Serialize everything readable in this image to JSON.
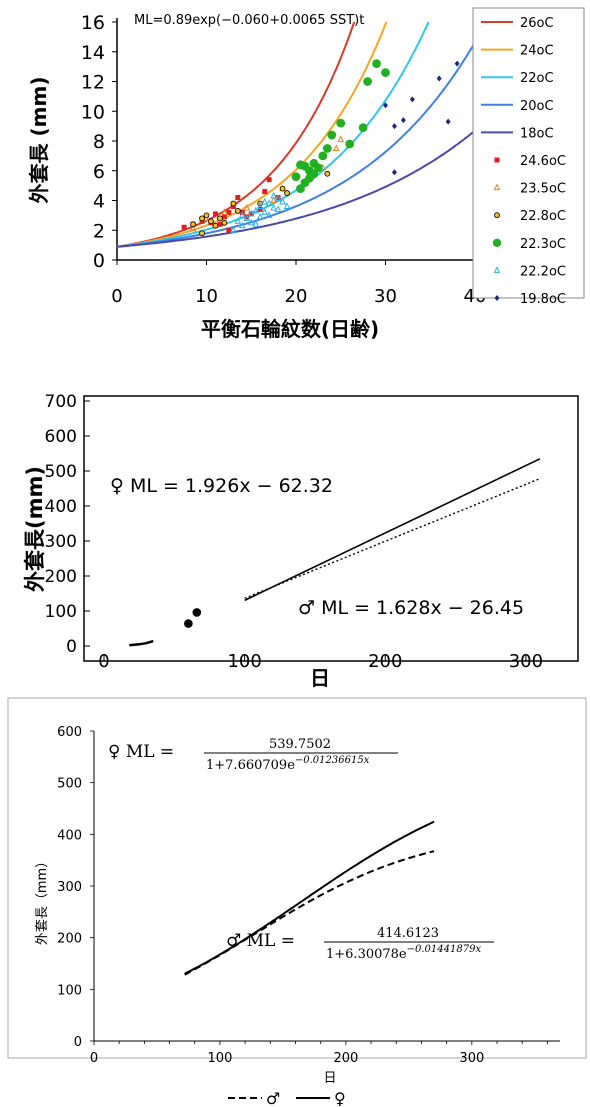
{
  "chart_data": [
    {
      "type": "scatter",
      "formula": "ML=0.89exp(−0.060+0.0065 SST)t",
      "xlabel": "平衡石輪紋数(日齢)",
      "ylabel": "外套長 (mm)",
      "xlim": [
        0,
        40
      ],
      "ylim": [
        0,
        16
      ],
      "xticks": [
        "0",
        "10",
        "20",
        "30",
        "40"
      ],
      "yticks": [
        "0",
        "2",
        "4",
        "6",
        "8",
        "10",
        "12",
        "14",
        "16"
      ],
      "grid": false,
      "legend_position": "right",
      "model": {
        "a": 0.89,
        "b": -0.06,
        "c": 0.0065
      },
      "curves": [
        {
          "name": "26oC",
          "sst": 26,
          "color": "#d63b2a"
        },
        {
          "name": "24oC",
          "sst": 24,
          "color": "#f5a623"
        },
        {
          "name": "22oC",
          "sst": 22,
          "color": "#2ec8e8"
        },
        {
          "name": "20oC",
          "sst": 20,
          "color": "#3f80e0"
        },
        {
          "name": "18oC",
          "sst": 18,
          "color": "#4a4aa8"
        }
      ],
      "series": [
        {
          "name": "24.6oC",
          "marker": "square",
          "color": "#e02020",
          "points": [
            [
              7.5,
              2.2
            ],
            [
              8.5,
              2.4
            ],
            [
              9.5,
              2.6
            ],
            [
              10.5,
              2.5
            ],
            [
              11,
              3.1
            ],
            [
              11.5,
              2.4
            ],
            [
              12,
              2.9
            ],
            [
              12.5,
              3.2
            ],
            [
              13,
              3.6
            ],
            [
              13.5,
              4.2
            ],
            [
              14,
              3.2
            ],
            [
              15,
              3.1
            ],
            [
              16,
              3.4
            ],
            [
              16.5,
              4.6
            ],
            [
              17,
              5.4
            ],
            [
              18,
              4.2
            ],
            [
              12.5,
              2.0
            ],
            [
              14.5,
              2.9
            ]
          ]
        },
        {
          "name": "23.5oC",
          "marker": "triangle-open",
          "color": "#f08020",
          "points": [
            [
              8.5,
              2.1
            ],
            [
              10,
              2.8
            ],
            [
              12,
              3.2
            ],
            [
              14.5,
              3.5
            ],
            [
              17.5,
              4.0
            ],
            [
              18.5,
              4.8
            ],
            [
              23,
              6.2
            ],
            [
              24.5,
              7.5
            ],
            [
              25,
              8.1
            ]
          ]
        },
        {
          "name": "22.8oC",
          "marker": "circle-open",
          "color": "#806000",
          "points": [
            [
              8.5,
              2.4
            ],
            [
              9.5,
              2.8
            ],
            [
              9.5,
              1.8
            ],
            [
              10,
              3.0
            ],
            [
              10.5,
              2.6
            ],
            [
              11,
              2.3
            ],
            [
              11.5,
              2.8
            ],
            [
              12,
              2.5
            ],
            [
              13,
              3.8
            ],
            [
              13.5,
              3.3
            ],
            [
              16,
              3.8
            ],
            [
              18.5,
              4.8
            ],
            [
              19,
              4.5
            ],
            [
              23.5,
              5.8
            ]
          ]
        },
        {
          "name": "22.3oC",
          "marker": "circle",
          "color": "#22b022",
          "points": [
            [
              20,
              5.6
            ],
            [
              20.5,
              6.4
            ],
            [
              21,
              6.3
            ],
            [
              21,
              5.2
            ],
            [
              21.5,
              6.0
            ],
            [
              22,
              6.5
            ],
            [
              22,
              5.8
            ],
            [
              22.5,
              6.2
            ],
            [
              23,
              7.0
            ],
            [
              23.5,
              7.5
            ],
            [
              24,
              8.4
            ],
            [
              25,
              9.2
            ],
            [
              26,
              7.8
            ],
            [
              27.5,
              8.9
            ],
            [
              28,
              12.0
            ],
            [
              29,
              13.2
            ],
            [
              30,
              12.6
            ],
            [
              20.5,
              4.8
            ],
            [
              21.5,
              5.5
            ]
          ]
        },
        {
          "name": "22.2oC",
          "marker": "triangle-open",
          "color": "#2ab0ea",
          "points": [
            [
              13,
              2.0
            ],
            [
              13.5,
              2.6
            ],
            [
              14,
              2.3
            ],
            [
              14.5,
              2.8
            ],
            [
              15,
              2.5
            ],
            [
              15,
              3.1
            ],
            [
              15.5,
              3.3
            ],
            [
              16,
              2.9
            ],
            [
              16,
              3.6
            ],
            [
              16.5,
              3.2
            ],
            [
              17,
              3.8
            ],
            [
              17,
              3.0
            ],
            [
              17.5,
              3.5
            ],
            [
              18,
              4.1
            ],
            [
              18,
              3.4
            ],
            [
              18.5,
              3.9
            ],
            [
              19,
              3.6
            ],
            [
              15.5,
              2.4
            ],
            [
              16.5,
              3.9
            ],
            [
              17.5,
              4.3
            ],
            [
              14,
              3.0
            ]
          ]
        },
        {
          "name": "19.8oC",
          "marker": "diamond",
          "color": "#1a2a80",
          "points": [
            [
              30,
              10.4
            ],
            [
              31,
              9.0
            ],
            [
              31,
              5.9
            ],
            [
              32,
              9.4
            ],
            [
              33,
              10.8
            ],
            [
              36,
              12.2
            ],
            [
              37,
              9.3
            ],
            [
              38,
              13.2
            ]
          ]
        }
      ]
    },
    {
      "type": "line",
      "xlabel": "日",
      "ylabel": "外套長(mm)",
      "xlim": [
        0,
        320
      ],
      "ylim": [
        0,
        700
      ],
      "xticks": [
        "0",
        "100",
        "200",
        "300"
      ],
      "yticks": [
        "0",
        "100",
        "200",
        "300",
        "400",
        "500",
        "600",
        "700"
      ],
      "grid": false,
      "series": [
        {
          "name": "♀",
          "style": "solid",
          "equation": "♀ ML = 1.926x − 62.32",
          "slope": 1.926,
          "intercept": -62.32,
          "x": [
            100,
            310
          ]
        },
        {
          "name": "♂",
          "style": "dotted",
          "equation": "♂ ML = 1.628x − 26.45",
          "slope": 1.628,
          "intercept": -26.45,
          "x": [
            100,
            310
          ]
        }
      ],
      "early_curve": {
        "x": [
          18,
          25,
          30,
          35
        ],
        "y": [
          2,
          5,
          8,
          14
        ]
      },
      "points": [
        [
          60,
          64
        ],
        [
          66,
          96
        ]
      ]
    },
    {
      "type": "line",
      "xlabel": "日",
      "ylabel": "外套長（mm）",
      "xlim": [
        0,
        370
      ],
      "ylim": [
        0,
        600
      ],
      "xticks": [
        "0",
        "100",
        "200",
        "300"
      ],
      "yticks": [
        "0",
        "100",
        "200",
        "300",
        "400",
        "500",
        "600"
      ],
      "grid": false,
      "legend_position": "bottom",
      "female_label": "♀ ML =",
      "female_num": "539.7502",
      "female_den": "1+7.660709e",
      "female_exp": "−0.01236615x",
      "male_label": "♂ ML =",
      "male_num": "414.6123",
      "male_den": "1+6.30078e",
      "male_exp": "−0.01441879x",
      "series": [
        {
          "name": "♂",
          "style": "dashed",
          "K": 414.6123,
          "A": 6.30078,
          "r": 0.01441879,
          "x": [
            72,
            270
          ]
        },
        {
          "name": "♀",
          "style": "solid",
          "K": 539.7502,
          "A": 7.660709,
          "r": 0.01236615,
          "x": [
            72,
            270
          ]
        }
      ]
    }
  ]
}
